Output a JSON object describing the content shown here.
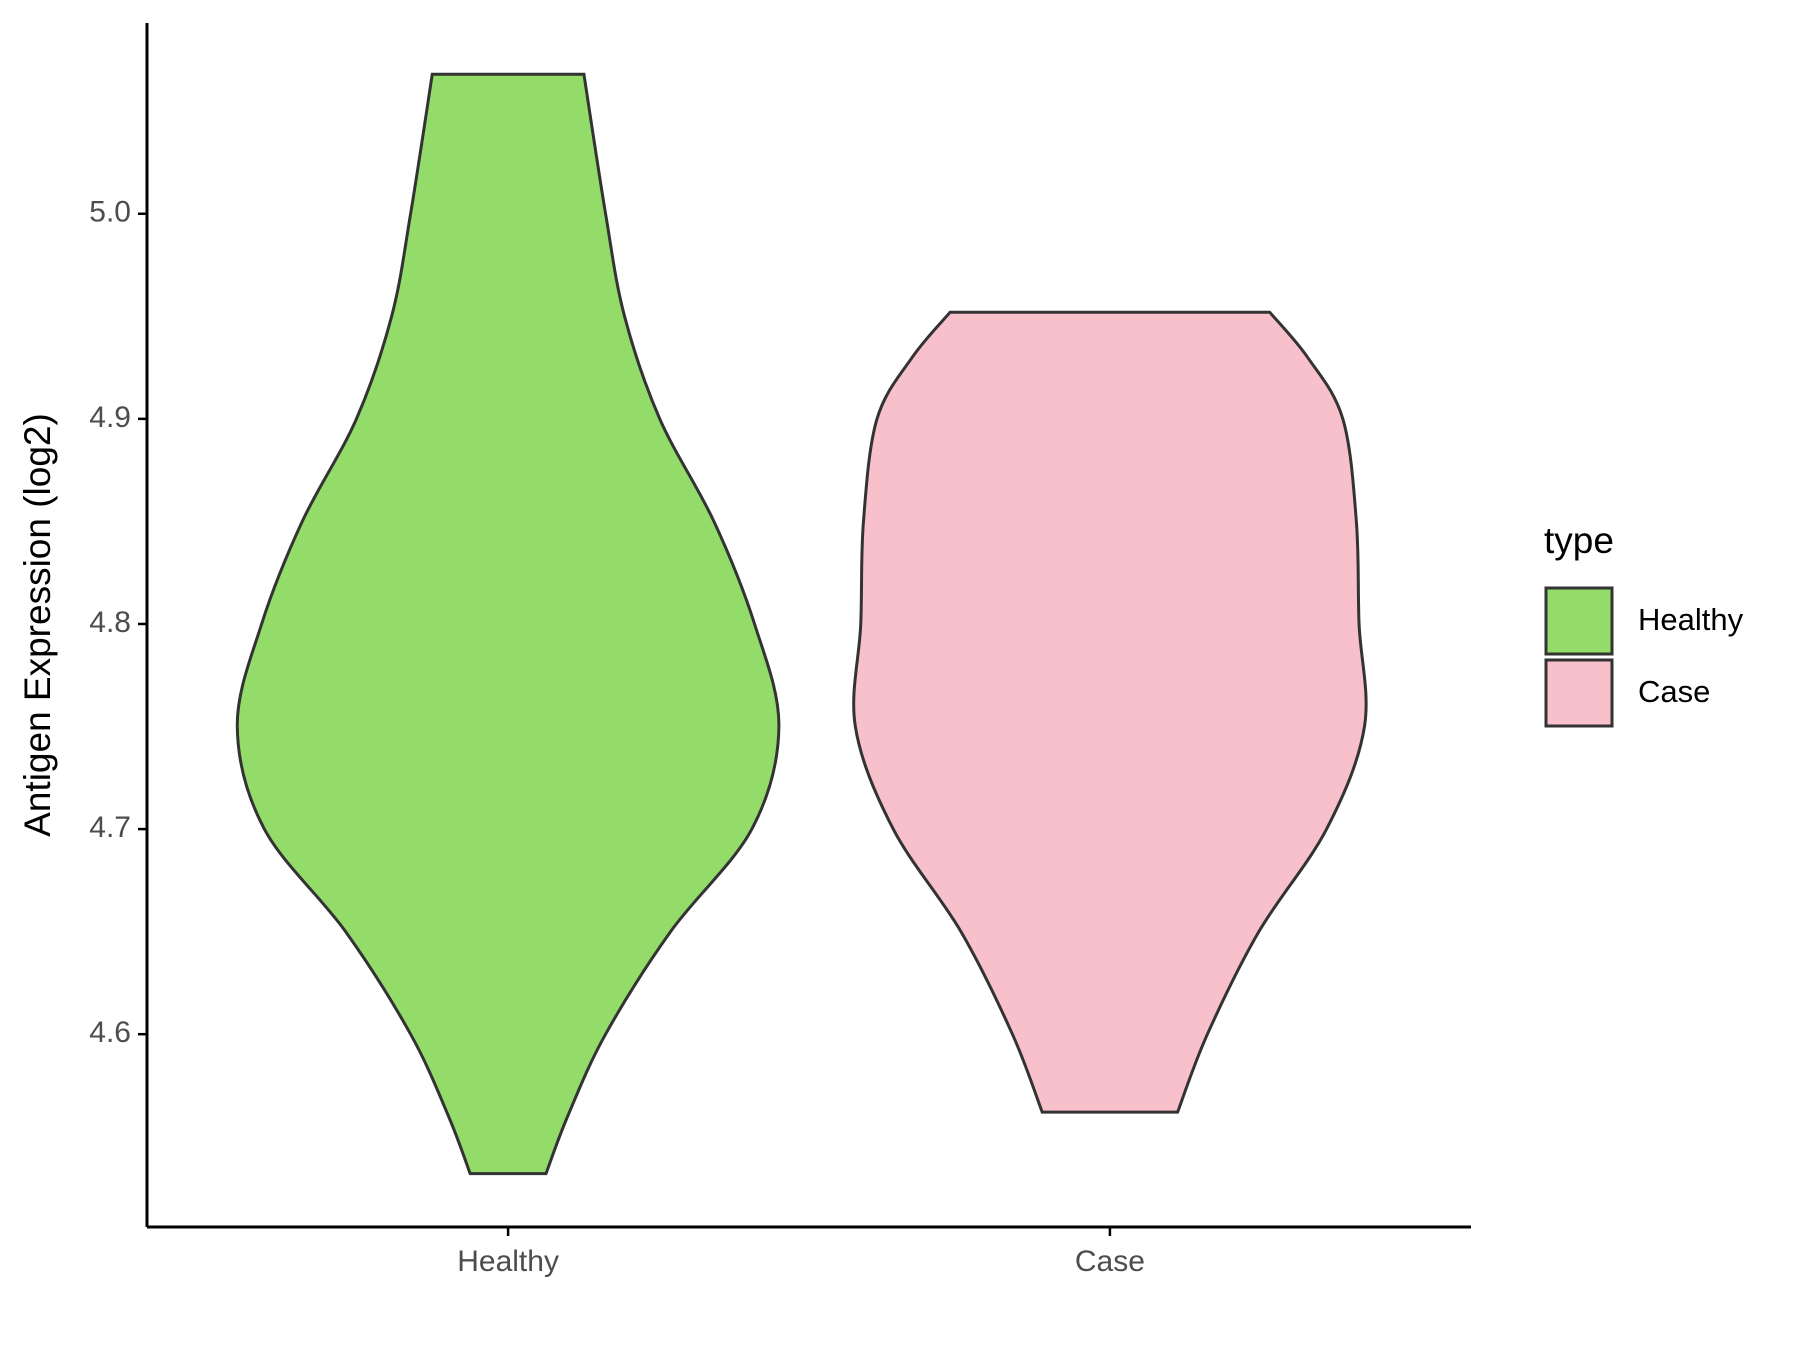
{
  "chart_data": {
    "type": "violin",
    "y_label": "Antigen Expression (log2)",
    "categories": [
      "Healthy",
      "Case"
    ],
    "series": [
      {
        "name": "Healthy",
        "color": "#93dc6a",
        "y": [
          4.532,
          4.56,
          4.6,
          4.65,
          4.7,
          4.75,
          4.8,
          4.85,
          4.9,
          4.95,
          5.0,
          5.068
        ],
        "width": [
          0.14,
          0.22,
          0.36,
          0.6,
          0.9,
          1.0,
          0.91,
          0.76,
          0.56,
          0.43,
          0.36,
          0.28
        ]
      },
      {
        "name": "Case",
        "color": "#f7c0cb",
        "y": [
          4.562,
          4.6,
          4.65,
          4.7,
          4.75,
          4.8,
          4.85,
          4.9,
          4.93,
          4.952
        ],
        "width": [
          0.25,
          0.36,
          0.55,
          0.8,
          0.94,
          0.92,
          0.91,
          0.86,
          0.73,
          0.59
        ]
      }
    ],
    "ylim": [
      4.506,
      5.093
    ],
    "yticks": [
      {
        "value": 4.6,
        "label": "4.6"
      },
      {
        "value": 4.7,
        "label": "4.7"
      },
      {
        "value": 4.8,
        "label": "4.8"
      },
      {
        "value": 4.9,
        "label": "4.9"
      },
      {
        "value": 5.0,
        "label": "5.0"
      }
    ],
    "legend_title": "type",
    "legend_position": "right"
  }
}
